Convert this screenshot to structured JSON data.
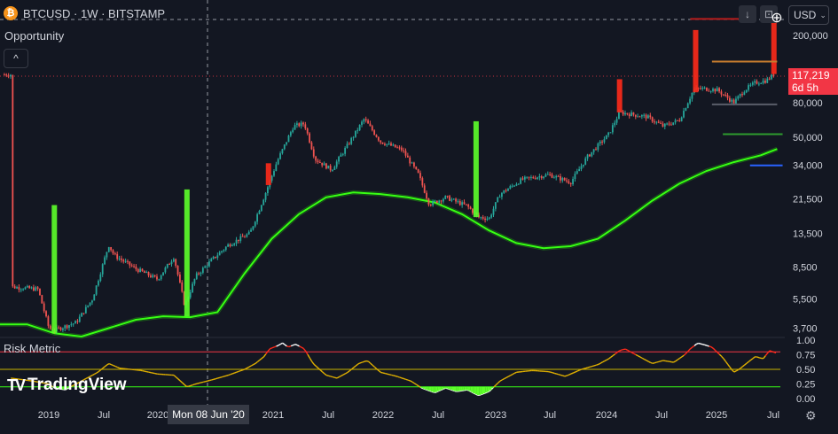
{
  "header": {
    "coin_glyph": "₿",
    "symbol_line": "BTCUSD · 1W · BITSTAMP",
    "indicator_name": "Opportunity",
    "collapse_glyph": "^",
    "risk_label": "Risk Metric",
    "currency": "USD",
    "currency_chevron": "⌄",
    "download_glyph": "↓",
    "expand_glyph": "⊡",
    "add_glyph": "⊕"
  },
  "price_tag": {
    "price": "117,219",
    "countdown": "6d 5h"
  },
  "crosshair_date": "Mon 08 Jun '20",
  "branding": {
    "mark": "TV",
    "name": "TradingView"
  },
  "settings_icon": "gear-icon",
  "colors": {
    "background": "#131722",
    "up": "#26a69a",
    "down": "#ef5350",
    "ma": "#39ff14",
    "buy_signal": "#5dff2a",
    "sell_signal": "#ff2a1a",
    "label_red": "#f23645"
  },
  "chart_data": [
    {
      "type": "candlestick",
      "title": "BTCUSD · 1W · BITSTAMP",
      "y_scale": "log",
      "y_ticks": [
        3700,
        5500,
        8500,
        13500,
        21500,
        34000,
        50000,
        80000,
        200000
      ],
      "y_tick_labels": [
        "3,700",
        "5,500",
        "8,500",
        "13,500",
        "21,500",
        "34,000",
        "50,000",
        "80,000",
        "200,000"
      ],
      "x_ticks": [
        "2019",
        "Jul",
        "2020",
        "Jul",
        "2021",
        "Jul",
        "2022",
        "Jul",
        "2023",
        "Jul",
        "2024",
        "Jul",
        "2025",
        "Jul"
      ],
      "price_path": [
        [
          2018.6,
          6500
        ],
        [
          2018.85,
          6300
        ],
        [
          2018.95,
          3700
        ],
        [
          2019.0,
          3600
        ],
        [
          2019.2,
          4000
        ],
        [
          2019.35,
          5500
        ],
        [
          2019.5,
          11500
        ],
        [
          2019.55,
          10000
        ],
        [
          2019.75,
          8300
        ],
        [
          2019.95,
          7200
        ],
        [
          2020.1,
          9800
        ],
        [
          2020.2,
          5000
        ],
        [
          2020.3,
          7500
        ],
        [
          2020.45,
          9400
        ],
        [
          2020.6,
          11500
        ],
        [
          2020.8,
          13500
        ],
        [
          2020.95,
          24000
        ],
        [
          2021.05,
          36000
        ],
        [
          2021.2,
          58000
        ],
        [
          2021.3,
          60000
        ],
        [
          2021.4,
          37000
        ],
        [
          2021.55,
          32000
        ],
        [
          2021.7,
          45000
        ],
        [
          2021.85,
          64000
        ],
        [
          2022.0,
          47000
        ],
        [
          2022.2,
          42000
        ],
        [
          2022.35,
          30000
        ],
        [
          2022.45,
          20000
        ],
        [
          2022.6,
          22000
        ],
        [
          2022.8,
          19500
        ],
        [
          2022.9,
          16800
        ],
        [
          2023.0,
          16500
        ],
        [
          2023.1,
          23000
        ],
        [
          2023.3,
          28000
        ],
        [
          2023.55,
          30000
        ],
        [
          2023.75,
          27000
        ],
        [
          2023.9,
          38000
        ],
        [
          2024.1,
          52000
        ],
        [
          2024.2,
          70000
        ],
        [
          2024.45,
          66000
        ],
        [
          2024.6,
          58000
        ],
        [
          2024.75,
          63000
        ],
        [
          2024.88,
          95000
        ],
        [
          2024.95,
          97000
        ],
        [
          2025.1,
          95000
        ],
        [
          2025.25,
          80000
        ],
        [
          2025.35,
          95000
        ],
        [
          2025.45,
          105000
        ],
        [
          2025.55,
          108000
        ],
        [
          2025.62,
          117219
        ]
      ],
      "moving_average": [
        [
          2018.5,
          3900
        ],
        [
          2018.75,
          3900
        ],
        [
          2019.0,
          3450
        ],
        [
          2019.25,
          3300
        ],
        [
          2019.5,
          3700
        ],
        [
          2019.75,
          4150
        ],
        [
          2020.0,
          4350
        ],
        [
          2020.25,
          4300
        ],
        [
          2020.5,
          4600
        ],
        [
          2020.75,
          7800
        ],
        [
          2021.0,
          12500
        ],
        [
          2021.25,
          17500
        ],
        [
          2021.5,
          22000
        ],
        [
          2021.75,
          23500
        ],
        [
          2022.0,
          23000
        ],
        [
          2022.25,
          22000
        ],
        [
          2022.5,
          20500
        ],
        [
          2022.75,
          17500
        ],
        [
          2023.0,
          14000
        ],
        [
          2023.25,
          11800
        ],
        [
          2023.5,
          11000
        ],
        [
          2023.75,
          11300
        ],
        [
          2024.0,
          12500
        ],
        [
          2024.25,
          16000
        ],
        [
          2024.5,
          21000
        ],
        [
          2024.75,
          26500
        ],
        [
          2025.0,
          31500
        ],
        [
          2025.25,
          35500
        ],
        [
          2025.5,
          39000
        ],
        [
          2025.65,
          42500
        ]
      ],
      "buy_signals": [
        [
          2019.0,
          3450,
          19800
        ],
        [
          2020.22,
          4350,
          24500
        ],
        [
          2022.88,
          16800,
          62000
        ]
      ],
      "sell_signals": [
        [
          2020.97,
          26000,
          35000
        ],
        [
          2024.2,
          70000,
          110000
        ],
        [
          2024.9,
          92000,
          215000
        ],
        [
          2025.62,
          118000,
          270000
        ]
      ],
      "target_lines": [
        [
          2024.85,
          2025.4,
          250000
        ],
        [
          2025.05,
          2025.65,
          140000
        ],
        [
          2025.15,
          2025.7,
          52000
        ],
        [
          2025.4,
          2025.7,
          34000
        ],
        [
          2025.05,
          2025.65,
          78000
        ]
      ]
    },
    {
      "type": "line",
      "title": "Risk Metric",
      "ylim": [
        0,
        1
      ],
      "y_ticks": [
        0,
        0.25,
        0.5,
        0.75,
        1
      ],
      "y_tick_labels": [
        "0.00",
        "0.25",
        "0.50",
        "0.75",
        "1.00"
      ],
      "thresholds": [
        0.8,
        0.5,
        0.2
      ],
      "risk_path": [
        [
          2018.6,
          0.35
        ],
        [
          2018.8,
          0.3
        ],
        [
          2018.95,
          0.25
        ],
        [
          2019.0,
          0.18
        ],
        [
          2019.1,
          0.15
        ],
        [
          2019.25,
          0.3
        ],
        [
          2019.4,
          0.45
        ],
        [
          2019.5,
          0.6
        ],
        [
          2019.6,
          0.52
        ],
        [
          2019.8,
          0.48
        ],
        [
          2019.95,
          0.42
        ],
        [
          2020.1,
          0.4
        ],
        [
          2020.22,
          0.2
        ],
        [
          2020.3,
          0.25
        ],
        [
          2020.45,
          0.32
        ],
        [
          2020.6,
          0.4
        ],
        [
          2020.75,
          0.5
        ],
        [
          2020.85,
          0.6
        ],
        [
          2020.93,
          0.72
        ],
        [
          2020.98,
          0.85
        ],
        [
          2021.05,
          0.9
        ],
        [
          2021.1,
          0.95
        ],
        [
          2021.15,
          0.88
        ],
        [
          2021.22,
          0.93
        ],
        [
          2021.3,
          0.85
        ],
        [
          2021.38,
          0.6
        ],
        [
          2021.5,
          0.4
        ],
        [
          2021.6,
          0.35
        ],
        [
          2021.7,
          0.45
        ],
        [
          2021.8,
          0.6
        ],
        [
          2021.88,
          0.65
        ],
        [
          2022.0,
          0.45
        ],
        [
          2022.15,
          0.38
        ],
        [
          2022.28,
          0.3
        ],
        [
          2022.38,
          0.18
        ],
        [
          2022.5,
          0.1
        ],
        [
          2022.6,
          0.18
        ],
        [
          2022.7,
          0.12
        ],
        [
          2022.8,
          0.15
        ],
        [
          2022.9,
          0.05
        ],
        [
          2023.0,
          0.12
        ],
        [
          2023.1,
          0.3
        ],
        [
          2023.25,
          0.45
        ],
        [
          2023.4,
          0.48
        ],
        [
          2023.55,
          0.46
        ],
        [
          2023.7,
          0.38
        ],
        [
          2023.85,
          0.5
        ],
        [
          2024.0,
          0.58
        ],
        [
          2024.1,
          0.68
        ],
        [
          2024.2,
          0.82
        ],
        [
          2024.25,
          0.85
        ],
        [
          2024.35,
          0.75
        ],
        [
          2024.5,
          0.6
        ],
        [
          2024.6,
          0.65
        ],
        [
          2024.7,
          0.62
        ],
        [
          2024.8,
          0.75
        ],
        [
          2024.85,
          0.85
        ],
        [
          2024.92,
          0.95
        ],
        [
          2024.98,
          0.92
        ],
        [
          2025.05,
          0.88
        ],
        [
          2025.15,
          0.7
        ],
        [
          2025.25,
          0.45
        ],
        [
          2025.3,
          0.5
        ],
        [
          2025.38,
          0.62
        ],
        [
          2025.45,
          0.72
        ],
        [
          2025.52,
          0.68
        ],
        [
          2025.58,
          0.82
        ],
        [
          2025.64,
          0.78
        ]
      ]
    }
  ]
}
